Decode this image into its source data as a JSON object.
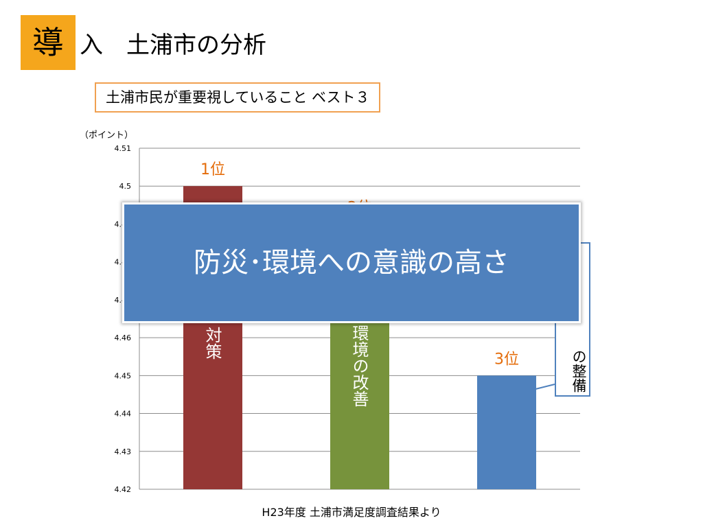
{
  "slide": {
    "badge": "導",
    "title_rest": "入　土浦市の分析",
    "subtitle": "土浦市民が重要視していること  ベスト３",
    "overlay_text": "防災･環境への意識の高さ",
    "source": "H23年度   土浦市満足度調査結果より"
  },
  "bar_labels": {
    "bar1": "対策",
    "bar2": "環境の改善",
    "callout": "の整備"
  },
  "colors": {
    "accent": "#f5a61c",
    "rank": "#e46c0a",
    "bar1": "#953735",
    "bar2": "#77933c",
    "bar3": "#4f81bd"
  },
  "chart_data": {
    "type": "bar",
    "ylabel": "（ポイント）",
    "ylim": [
      4.42,
      4.51
    ],
    "yticks": [
      "4.51",
      "4.5",
      "4.49",
      "4.48",
      "4.47",
      "4.46",
      "4.45",
      "4.44",
      "4.43",
      "4.42"
    ],
    "categories": [
      "",
      "",
      ""
    ],
    "values": [
      4.5,
      4.49,
      4.45
    ],
    "rank_labels": [
      "1位",
      "2位",
      "3位"
    ],
    "grid": true
  }
}
